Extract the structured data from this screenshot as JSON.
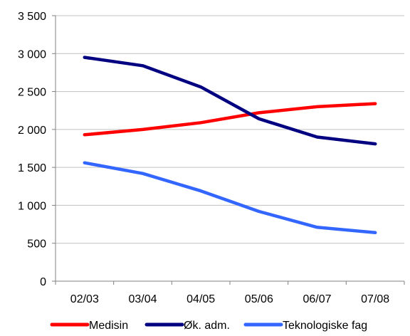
{
  "chart_data": {
    "type": "line",
    "title": "",
    "xlabel": "",
    "ylabel": "",
    "categories": [
      "02/03",
      "03/04",
      "04/05",
      "05/06",
      "06/07",
      "07/08"
    ],
    "y_tick_labels": [
      "0",
      "500",
      "1 000",
      "1 500",
      "2 000",
      "2 500",
      "3 000",
      "3 500"
    ],
    "y_tick_values": [
      0,
      500,
      1000,
      1500,
      2000,
      2500,
      3000,
      3500
    ],
    "ylim": [
      0,
      3500
    ],
    "grid": true,
    "legend_position": "bottom",
    "series": [
      {
        "name": "Medisin",
        "color": "#ff0000",
        "values": [
          1930,
          2000,
          2090,
          2220,
          2300,
          2340
        ]
      },
      {
        "name": "Øk. adm.",
        "color": "#000080",
        "values": [
          2950,
          2840,
          2560,
          2140,
          1900,
          1810
        ]
      },
      {
        "name": "Teknologiske fag",
        "color": "#3366ff",
        "values": [
          1560,
          1420,
          1190,
          920,
          710,
          640
        ]
      }
    ]
  }
}
